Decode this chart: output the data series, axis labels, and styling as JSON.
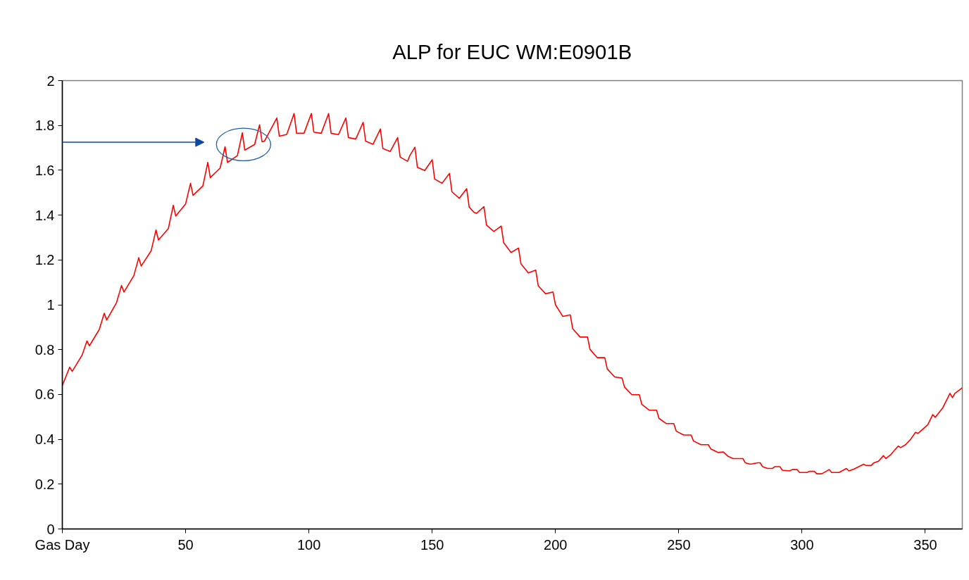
{
  "chart_data": {
    "type": "line",
    "title": "ALP for EUC WM:E0901B",
    "x": [
      0,
      3,
      4,
      8,
      10,
      11,
      15,
      17,
      18,
      22,
      24,
      25,
      29,
      31,
      32,
      36,
      38,
      39,
      43,
      45,
      46,
      50,
      52,
      53,
      57,
      59,
      60,
      64,
      66,
      67,
      71,
      73,
      74,
      78,
      80,
      81,
      82,
      87,
      88,
      91,
      94,
      95,
      98,
      101,
      102,
      105,
      108,
      109,
      112,
      115,
      116,
      119,
      122,
      123,
      126,
      129,
      130,
      133,
      136,
      137,
      140,
      141,
      143,
      144,
      147,
      150,
      151,
      154,
      157,
      158,
      161,
      164,
      165,
      167,
      168,
      171,
      172,
      175,
      178,
      179,
      182,
      185,
      186,
      189,
      192,
      193,
      196,
      199,
      200,
      203,
      206,
      207,
      210,
      213,
      214,
      217,
      220,
      221,
      224,
      227,
      228,
      231,
      234,
      235,
      238,
      241,
      242,
      245,
      248,
      249,
      252,
      255,
      256,
      259,
      262,
      263,
      266,
      268,
      270,
      272,
      276,
      277,
      279,
      282,
      283,
      284,
      286,
      288,
      289,
      291,
      292,
      295,
      296,
      298,
      299,
      302,
      303,
      305,
      306,
      308,
      311,
      312,
      315,
      318,
      319,
      321,
      325,
      326,
      328,
      329,
      331,
      333,
      334,
      336,
      339,
      340,
      342,
      344,
      346,
      347,
      351,
      353,
      354,
      357,
      360,
      361,
      362,
      365
    ],
    "series": [
      {
        "color": "#ff0000",
        "values": [
          0.64,
          0.722,
          0.703,
          0.775,
          0.839,
          0.817,
          0.89,
          0.962,
          0.932,
          1.01,
          1.086,
          1.057,
          1.13,
          1.21,
          1.173,
          1.24,
          1.334,
          1.289,
          1.34,
          1.444,
          1.396,
          1.45,
          1.542,
          1.488,
          1.53,
          1.635,
          1.567,
          1.61,
          1.705,
          1.635,
          1.665,
          1.767,
          1.69,
          1.715,
          1.803,
          1.727,
          1.73,
          1.833,
          1.752,
          1.76,
          1.853,
          1.765,
          1.765,
          1.853,
          1.77,
          1.765,
          1.853,
          1.765,
          1.759,
          1.833,
          1.746,
          1.739,
          1.814,
          1.73,
          1.716,
          1.784,
          1.697,
          1.684,
          1.746,
          1.659,
          1.64,
          1.667,
          1.703,
          1.613,
          1.599,
          1.647,
          1.561,
          1.542,
          1.586,
          1.504,
          1.475,
          1.518,
          1.436,
          1.412,
          1.408,
          1.438,
          1.356,
          1.327,
          1.351,
          1.277,
          1.233,
          1.253,
          1.183,
          1.142,
          1.155,
          1.085,
          1.049,
          1.057,
          1.0,
          0.948,
          0.955,
          0.893,
          0.856,
          0.856,
          0.801,
          0.764,
          0.764,
          0.714,
          0.678,
          0.673,
          0.633,
          0.599,
          0.599,
          0.556,
          0.53,
          0.53,
          0.493,
          0.47,
          0.47,
          0.436,
          0.419,
          0.419,
          0.392,
          0.376,
          0.376,
          0.357,
          0.341,
          0.344,
          0.324,
          0.314,
          0.314,
          0.295,
          0.289,
          0.295,
          0.295,
          0.278,
          0.27,
          0.27,
          0.278,
          0.278,
          0.262,
          0.259,
          0.265,
          0.265,
          0.252,
          0.252,
          0.257,
          0.257,
          0.246,
          0.246,
          0.265,
          0.252,
          0.252,
          0.27,
          0.259,
          0.267,
          0.289,
          0.283,
          0.283,
          0.294,
          0.302,
          0.327,
          0.314,
          0.332,
          0.37,
          0.363,
          0.376,
          0.399,
          0.431,
          0.426,
          0.465,
          0.51,
          0.498,
          0.539,
          0.605,
          0.586,
          0.605,
          0.63
        ]
      }
    ],
    "xlim": [
      0,
      365
    ],
    "xticks": [
      {
        "value": 0,
        "label": "Gas Day"
      },
      50,
      100,
      150,
      200,
      250,
      300,
      350
    ],
    "ylim": [
      0,
      2
    ],
    "yticks": [
      0,
      0.2,
      0.4,
      0.6,
      0.8,
      1,
      1.2,
      1.4,
      1.6,
      1.8,
      2
    ],
    "grid": false,
    "marker": "none",
    "line_style": "solid"
  }
}
